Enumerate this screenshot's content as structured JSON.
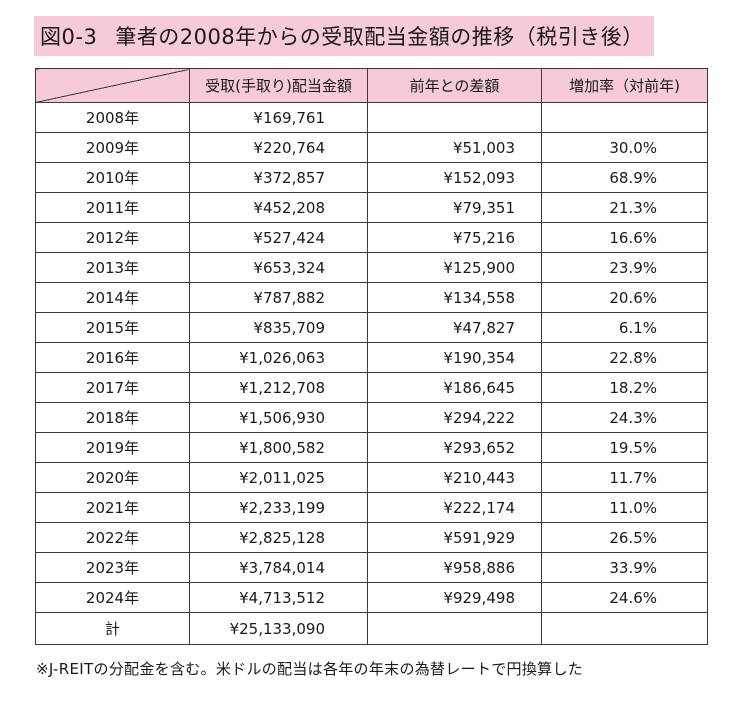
{
  "title": {
    "label": "図0-3",
    "text": "筆者の2008年からの受取配当金額の推移（税引き後）"
  },
  "table": {
    "headers": [
      "",
      "受取(手取り)配当金額",
      "前年との差額",
      "増加率（対前年)"
    ],
    "rows": [
      {
        "year": "2008年",
        "amount": "¥169,761",
        "diff": "",
        "rate": ""
      },
      {
        "year": "2009年",
        "amount": "¥220,764",
        "diff": "¥51,003",
        "rate": "30.0%"
      },
      {
        "year": "2010年",
        "amount": "¥372,857",
        "diff": "¥152,093",
        "rate": "68.9%"
      },
      {
        "year": "2011年",
        "amount": "¥452,208",
        "diff": "¥79,351",
        "rate": "21.3%"
      },
      {
        "year": "2012年",
        "amount": "¥527,424",
        "diff": "¥75,216",
        "rate": "16.6%"
      },
      {
        "year": "2013年",
        "amount": "¥653,324",
        "diff": "¥125,900",
        "rate": "23.9%"
      },
      {
        "year": "2014年",
        "amount": "¥787,882",
        "diff": "¥134,558",
        "rate": "20.6%"
      },
      {
        "year": "2015年",
        "amount": "¥835,709",
        "diff": "¥47,827",
        "rate": "6.1%"
      },
      {
        "year": "2016年",
        "amount": "¥1,026,063",
        "diff": "¥190,354",
        "rate": "22.8%"
      },
      {
        "year": "2017年",
        "amount": "¥1,212,708",
        "diff": "¥186,645",
        "rate": "18.2%"
      },
      {
        "year": "2018年",
        "amount": "¥1,506,930",
        "diff": "¥294,222",
        "rate": "24.3%"
      },
      {
        "year": "2019年",
        "amount": "¥1,800,582",
        "diff": "¥293,652",
        "rate": "19.5%"
      },
      {
        "year": "2020年",
        "amount": "¥2,011,025",
        "diff": "¥210,443",
        "rate": "11.7%"
      },
      {
        "year": "2021年",
        "amount": "¥2,233,199",
        "diff": "¥222,174",
        "rate": "11.0%"
      },
      {
        "year": "2022年",
        "amount": "¥2,825,128",
        "diff": "¥591,929",
        "rate": "26.5%"
      },
      {
        "year": "2023年",
        "amount": "¥3,784,014",
        "diff": "¥958,886",
        "rate": "33.9%"
      },
      {
        "year": "2024年",
        "amount": "¥4,713,512",
        "diff": "¥929,498",
        "rate": "24.6%"
      }
    ],
    "total": {
      "label": "計",
      "amount": "¥25,133,090",
      "diff": "",
      "rate": ""
    }
  },
  "footnote": "※J-REITの分配金を含む。米ドルの配当は各年の年末の為替レートで円換算した",
  "colors": {
    "header_pink": "#f6c9db",
    "border": "#3a3a3a"
  }
}
